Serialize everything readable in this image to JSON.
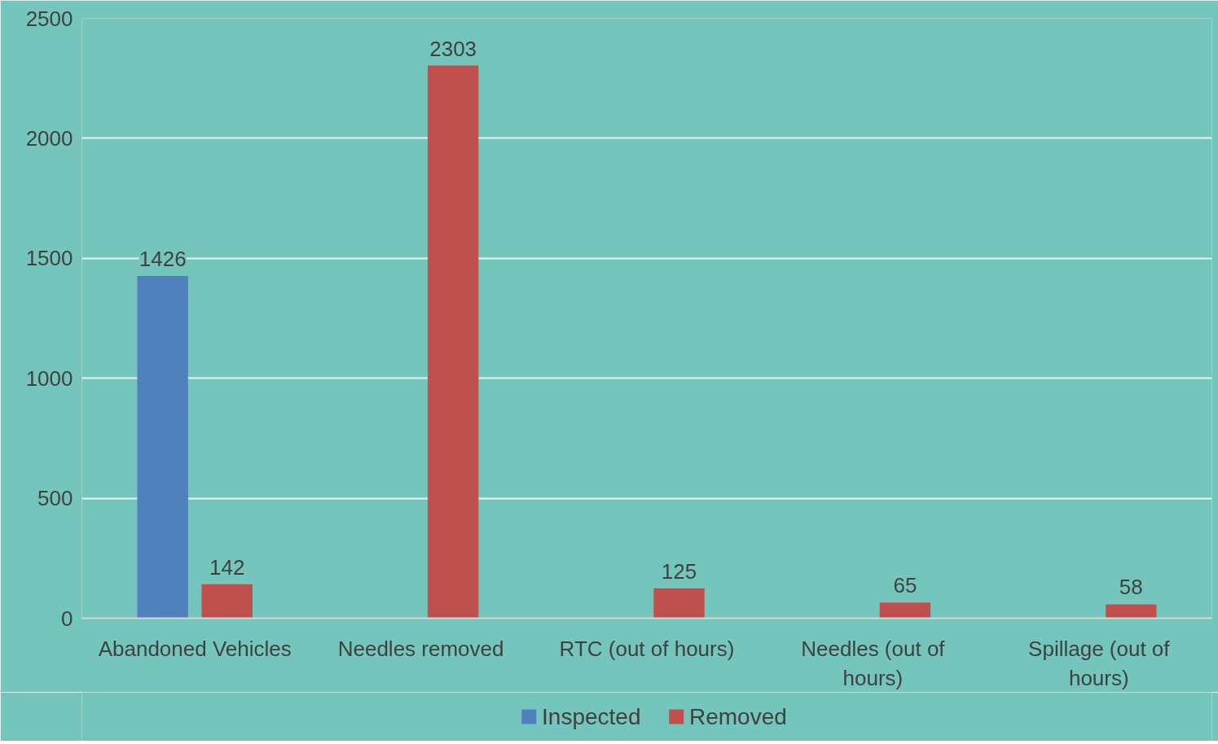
{
  "chart_data": {
    "type": "bar",
    "categories": [
      "Abandoned Vehicles",
      "Needles removed",
      "RTC (out of hours)",
      "Needles (out of hours)",
      "Spillage (out of hours)"
    ],
    "series": [
      {
        "name": "Inspected",
        "color": "#4f81bd",
        "values": [
          1426,
          null,
          null,
          null,
          null
        ]
      },
      {
        "name": "Removed",
        "color": "#c0504d",
        "values": [
          142,
          2303,
          125,
          65,
          58
        ]
      }
    ],
    "ylim": [
      0,
      2500
    ],
    "yticks": [
      0,
      500,
      1000,
      1500,
      2000,
      2500
    ],
    "grid": "y",
    "legend": "bottom",
    "data_labels": true
  }
}
